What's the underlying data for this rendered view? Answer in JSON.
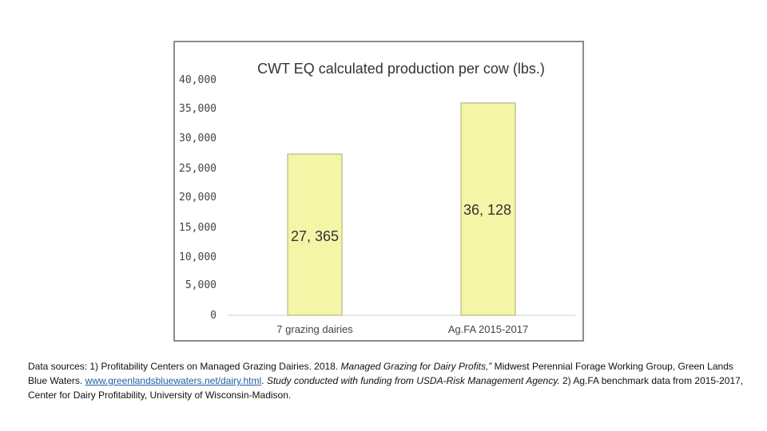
{
  "chart_data": {
    "type": "bar",
    "title": "CWT EQ calculated production per cow (lbs.)",
    "categories": [
      "7 grazing dairies",
      "Ag.FA 2015-2017"
    ],
    "values": [
      27365,
      36128
    ],
    "data_labels": [
      "27, 365",
      "36, 128"
    ],
    "ylim": [
      0,
      40000
    ],
    "yticks": [
      0,
      5000,
      10000,
      15000,
      20000,
      25000,
      30000,
      35000,
      40000
    ],
    "ytick_labels": [
      "0",
      "5,000",
      "10,000",
      "15,000",
      "20,000",
      "25,000",
      "30,000",
      "35,000",
      "40,000"
    ],
    "xlabel": "",
    "ylabel": "",
    "grid": false,
    "bar_color": "#f5f5a8",
    "bar_edge_color": "#a8a878",
    "frame_color": "#8c8c8c"
  },
  "sources": {
    "part1": "Data sources: 1) Profitability Centers on Managed Grazing Dairies. 2018. ",
    "part2_italic": "Managed Grazing for Dairy Profits,”",
    "part3": " Midwest Perennial Forage Working Group, Green Lands Blue Waters. ",
    "link": "www.greenlandsbluewaters.net/dairy.html",
    "part4": ". ",
    "part5_italic": "Study conducted with funding from USDA-Risk Management Agency.",
    "part6": " 2) Ag.FA benchmark data from 2015-2017, Center for Dairy Profitability, University of Wisconsin-Madison."
  }
}
